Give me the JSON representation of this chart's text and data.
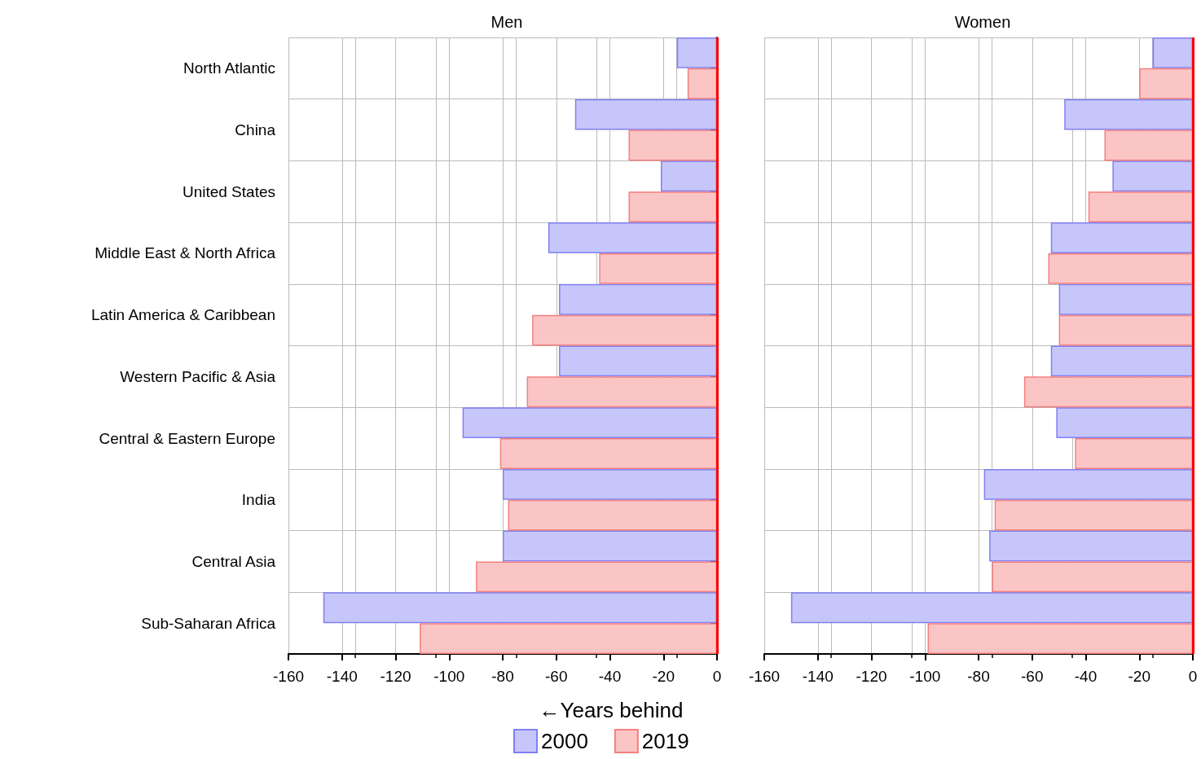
{
  "chart_data": [
    {
      "type": "bar",
      "orientation": "horizontal",
      "title": "Men",
      "xlabel": "←Years behind",
      "categories": [
        "North Atlantic",
        "China",
        "United States",
        "Middle East & North Africa",
        "Latin America & Caribbean",
        "Western Pacific & Asia",
        "Central & Eastern Europe",
        "India",
        "Central Asia",
        "Sub-Saharan Africa"
      ],
      "series": [
        {
          "name": "2000",
          "color": "#c6c6fb",
          "values": [
            -15,
            -53,
            -21,
            -63,
            -59,
            -59,
            -95,
            -80,
            -80,
            -147
          ]
        },
        {
          "name": "2019",
          "color": "#fcc5c5",
          "values": [
            -11,
            -33,
            -33,
            -44,
            -69,
            -71,
            -81,
            -78,
            -90,
            -111
          ]
        }
      ],
      "xlim": [
        -160,
        0
      ],
      "xticks": [
        -160,
        -140,
        -120,
        -100,
        -80,
        -60,
        -40,
        -20,
        0
      ],
      "ref_lines": [
        {
          "axis": "x",
          "value": 0,
          "color": "#ff0000"
        }
      ],
      "grid": true,
      "legend": "bottom"
    },
    {
      "type": "bar",
      "orientation": "horizontal",
      "title": "Women",
      "categories": [
        null,
        null,
        null,
        null,
        null,
        null,
        null,
        null,
        null,
        null
      ],
      "series": [
        {
          "name": "2000",
          "color": "#c6c6fb",
          "values": [
            -15,
            -48,
            -30,
            -53,
            -50,
            -53,
            -51,
            -78,
            -76,
            -150
          ]
        },
        {
          "name": "2019",
          "color": "#fcc5c5",
          "values": [
            -20,
            -33,
            -39,
            -54,
            -50,
            -63,
            -44,
            -74,
            -75,
            -99
          ]
        }
      ],
      "xlim": [
        -160,
        0
      ],
      "xticks": [
        -160,
        -140,
        -120,
        -100,
        -80,
        -60,
        -40,
        -20,
        0
      ],
      "ref_lines": [
        {
          "axis": "x",
          "value": 0,
          "color": "#ff0000"
        }
      ],
      "grid": true,
      "tick_labels": "x"
    }
  ]
}
